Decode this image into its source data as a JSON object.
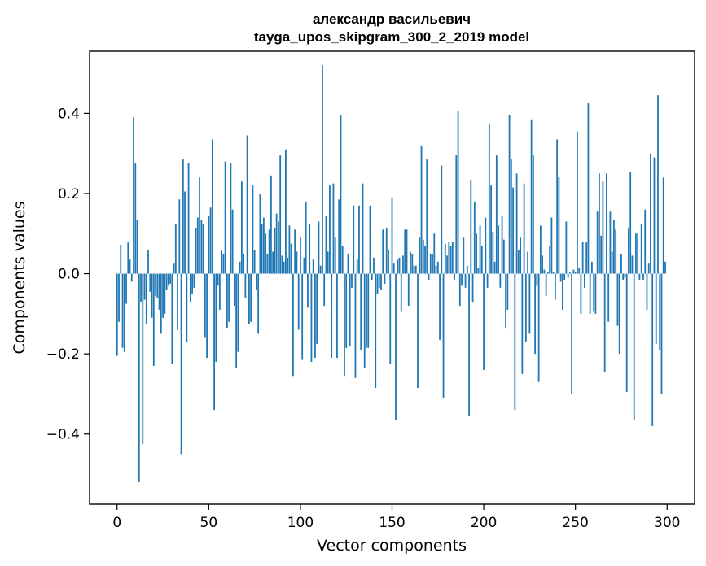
{
  "chart_data": {
    "type": "bar",
    "title_line1": "александр васильевич",
    "title_line2": "tayga_upos_skipgram_300_2_2019 model",
    "xlabel": "Vector components",
    "ylabel": "Components values",
    "xlim": [
      -15,
      315
    ],
    "ylim": [
      -0.575,
      0.555
    ],
    "xticks": [
      0,
      50,
      100,
      150,
      200,
      250,
      300
    ],
    "xtick_labels": [
      "0",
      "50",
      "100",
      "150",
      "200",
      "250",
      "300"
    ],
    "yticks": [
      -0.4,
      -0.2,
      0.0,
      0.2,
      0.4
    ],
    "ytick_labels": [
      "−0.4",
      "−0.2",
      "0.0",
      "0.2",
      "0.4"
    ],
    "bar_color": "#1f77b4",
    "x": [
      0,
      1,
      2,
      3,
      4,
      5,
      6,
      7,
      8,
      9,
      10,
      11,
      12,
      13,
      14,
      15,
      16,
      17,
      18,
      19,
      20,
      21,
      22,
      23,
      24,
      25,
      26,
      27,
      28,
      29,
      30,
      31,
      32,
      33,
      34,
      35,
      36,
      37,
      38,
      39,
      40,
      41,
      42,
      43,
      44,
      45,
      46,
      47,
      48,
      49,
      50,
      51,
      52,
      53,
      54,
      55,
      56,
      57,
      58,
      59,
      60,
      61,
      62,
      63,
      64,
      65,
      66,
      67,
      68,
      69,
      70,
      71,
      72,
      73,
      74,
      75,
      76,
      77,
      78,
      79,
      80,
      81,
      82,
      83,
      84,
      85,
      86,
      87,
      88,
      89,
      90,
      91,
      92,
      93,
      94,
      95,
      96,
      97,
      98,
      99,
      100,
      101,
      102,
      103,
      104,
      105,
      106,
      107,
      108,
      109,
      110,
      111,
      112,
      113,
      114,
      115,
      116,
      117,
      118,
      119,
      120,
      121,
      122,
      123,
      124,
      125,
      126,
      127,
      128,
      129,
      130,
      131,
      132,
      133,
      134,
      135,
      136,
      137,
      138,
      139,
      140,
      141,
      142,
      143,
      144,
      145,
      146,
      147,
      148,
      149,
      150,
      151,
      152,
      153,
      154,
      155,
      156,
      157,
      158,
      159,
      160,
      161,
      162,
      163,
      164,
      165,
      166,
      167,
      168,
      169,
      170,
      171,
      172,
      173,
      174,
      175,
      176,
      177,
      178,
      179,
      180,
      181,
      182,
      183,
      184,
      185,
      186,
      187,
      188,
      189,
      190,
      191,
      192,
      193,
      194,
      195,
      196,
      197,
      198,
      199,
      200,
      201,
      202,
      203,
      204,
      205,
      206,
      207,
      208,
      209,
      210,
      211,
      212,
      213,
      214,
      215,
      216,
      217,
      218,
      219,
      220,
      221,
      222,
      223,
      224,
      225,
      226,
      227,
      228,
      229,
      230,
      231,
      232,
      233,
      234,
      235,
      236,
      237,
      238,
      239,
      240,
      241,
      242,
      243,
      244,
      245,
      246,
      247,
      248,
      249,
      250,
      251,
      252,
      253,
      254,
      255,
      256,
      257,
      258,
      259,
      260,
      261,
      262,
      263,
      264,
      265,
      266,
      267,
      268,
      269,
      270,
      271,
      272,
      273,
      274,
      275,
      276,
      277,
      278,
      279,
      280,
      281,
      282,
      283,
      284,
      285,
      286,
      287,
      288,
      289,
      290,
      291,
      292,
      293,
      294,
      295,
      296,
      297,
      298,
      299
    ],
    "values": [
      -0.205,
      -0.12,
      0.072,
      -0.185,
      -0.195,
      -0.075,
      0.078,
      0.035,
      -0.02,
      0.39,
      0.275,
      0.135,
      -0.52,
      -0.07,
      -0.425,
      -0.065,
      -0.125,
      0.06,
      -0.045,
      -0.11,
      -0.23,
      -0.055,
      -0.06,
      -0.09,
      -0.15,
      -0.11,
      -0.1,
      -0.04,
      -0.03,
      -0.025,
      -0.225,
      0.025,
      0.125,
      -0.14,
      0.185,
      -0.45,
      0.285,
      0.205,
      -0.17,
      0.275,
      -0.07,
      -0.05,
      -0.035,
      0.115,
      0.14,
      0.24,
      0.135,
      0.125,
      -0.16,
      -0.21,
      0.145,
      0.165,
      0.335,
      -0.34,
      -0.22,
      -0.03,
      -0.09,
      0.06,
      0.05,
      0.28,
      -0.135,
      -0.12,
      0.275,
      0.16,
      -0.08,
      -0.235,
      -0.195,
      0.03,
      0.23,
      0.05,
      -0.06,
      0.345,
      -0.125,
      -0.12,
      0.22,
      0.06,
      -0.04,
      -0.15,
      0.2,
      0.125,
      0.14,
      0.1,
      0.05,
      0.11,
      0.245,
      0.055,
      0.115,
      0.15,
      0.13,
      0.295,
      0.045,
      0.03,
      0.31,
      0.04,
      0.12,
      0.075,
      -0.255,
      0.11,
      0.055,
      -0.14,
      0.09,
      -0.215,
      0.04,
      0.18,
      -0.085,
      0.125,
      -0.22,
      0.035,
      -0.21,
      -0.175,
      0.13,
      0.02,
      0.52,
      -0.08,
      0.145,
      0.055,
      0.22,
      -0.21,
      0.225,
      0.09,
      -0.21,
      0.185,
      0.395,
      0.07,
      -0.255,
      -0.185,
      0.05,
      -0.18,
      -0.035,
      0.17,
      -0.26,
      0.035,
      0.17,
      -0.19,
      0.225,
      -0.235,
      -0.185,
      -0.185,
      0.17,
      -0.015,
      0.04,
      -0.285,
      -0.05,
      -0.035,
      -0.04,
      0.11,
      -0.025,
      0.115,
      0.06,
      -0.225,
      0.19,
      0.025,
      -0.365,
      0.035,
      0.04,
      -0.095,
      0.045,
      0.11,
      0.11,
      -0.08,
      0.055,
      0.05,
      0.02,
      0.02,
      -0.285,
      0.09,
      0.32,
      0.085,
      0.07,
      0.285,
      -0.015,
      0.05,
      0.05,
      0.1,
      0.02,
      0.03,
      -0.165,
      0.27,
      -0.31,
      0.075,
      0.045,
      0.08,
      0.07,
      0.08,
      -0.015,
      0.295,
      0.405,
      -0.08,
      -0.03,
      0.09,
      -0.035,
      0.02,
      -0.355,
      0.235,
      -0.07,
      0.18,
      0.1,
      0.015,
      0.12,
      0.07,
      -0.24,
      0.14,
      -0.035,
      0.375,
      0.22,
      0.105,
      0.03,
      0.295,
      0.12,
      -0.035,
      0.145,
      0.085,
      -0.135,
      -0.09,
      0.395,
      0.285,
      0.215,
      -0.34,
      0.25,
      0.06,
      0.09,
      -0.25,
      0.225,
      -0.17,
      0.055,
      -0.15,
      0.385,
      0.295,
      -0.2,
      -0.03,
      -0.27,
      0.12,
      0.045,
      0.01,
      -0.055,
      0.005,
      0.07,
      0.14,
      0.005,
      -0.065,
      0.335,
      0.24,
      -0.02,
      -0.09,
      -0.015,
      0.13,
      -0.01,
      0.005,
      -0.3,
      0.01,
      0.005,
      0.355,
      0.015,
      -0.1,
      0.08,
      -0.035,
      0.08,
      0.425,
      -0.1,
      0.03,
      -0.095,
      -0.1,
      0.155,
      0.25,
      0.095,
      0.23,
      -0.245,
      0.25,
      -0.12,
      0.155,
      0.055,
      0.135,
      0.11,
      -0.13,
      -0.2,
      0.05,
      -0.015,
      -0.01,
      -0.295,
      0.115,
      0.255,
      0.045,
      -0.365,
      0.1,
      0.1,
      -0.015,
      0.125,
      -0.015,
      0.16,
      -0.09,
      0.025,
      0.3,
      -0.38,
      0.29,
      -0.175,
      0.445,
      -0.19,
      -0.3,
      0.24,
      0.03
    ]
  }
}
